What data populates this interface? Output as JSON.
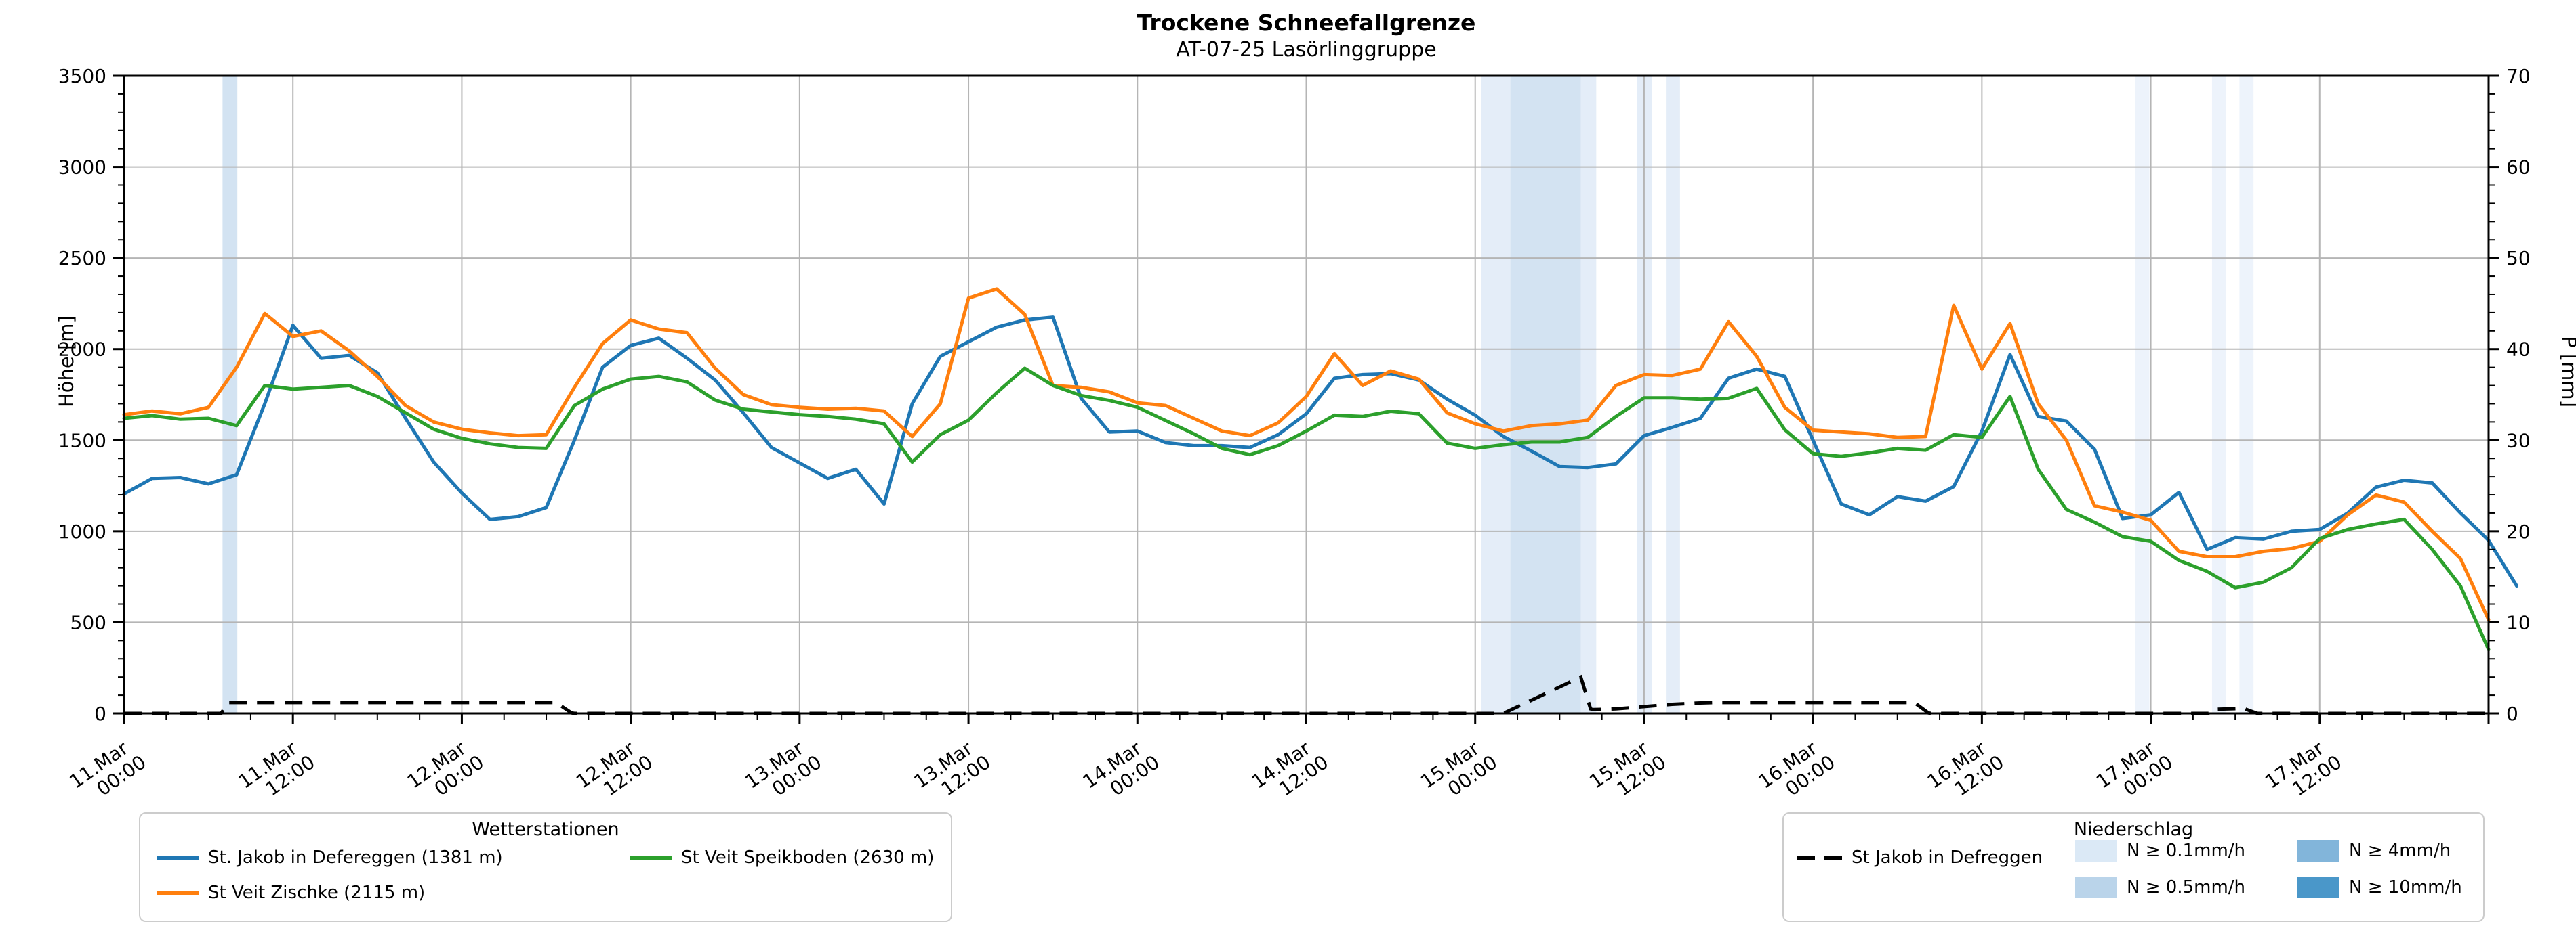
{
  "title": "Trockene Schneefallgrenze",
  "subtitle": "AT-07-25 Lasörlinggruppe",
  "axes": {
    "left_label": "Höhe [m]",
    "right_label": "P [mm]",
    "left_ticks": [
      0,
      500,
      1000,
      1500,
      2000,
      2500,
      3000,
      3500
    ],
    "right_ticks": [
      0,
      10,
      20,
      30,
      40,
      50,
      60,
      70
    ],
    "x_ticks": [
      {
        "date": "11.Mar",
        "time": "00:00"
      },
      {
        "date": "11.Mar",
        "time": "12:00"
      },
      {
        "date": "12.Mar",
        "time": "00:00"
      },
      {
        "date": "12.Mar",
        "time": "12:00"
      },
      {
        "date": "13.Mar",
        "time": "00:00"
      },
      {
        "date": "13.Mar",
        "time": "12:00"
      },
      {
        "date": "14.Mar",
        "time": "00:00"
      },
      {
        "date": "14.Mar",
        "time": "12:00"
      },
      {
        "date": "15.Mar",
        "time": "00:00"
      },
      {
        "date": "15.Mar",
        "time": "12:00"
      },
      {
        "date": "16.Mar",
        "time": "00:00"
      },
      {
        "date": "16.Mar",
        "time": "12:00"
      },
      {
        "date": "17.Mar",
        "time": "00:00"
      },
      {
        "date": "17.Mar",
        "time": "12:00"
      }
    ]
  },
  "legend_stations": {
    "title": "Wetterstationen",
    "entries": [
      {
        "label": "St. Jakob in Defereggen (1381 m)",
        "color": "#1f77b4"
      },
      {
        "label": "St Veit Zischke (2115 m)",
        "color": "#ff7f0e"
      },
      {
        "label": "St Veit Speikboden (2630 m)",
        "color": "#2ca02c"
      }
    ]
  },
  "legend_precip": {
    "title": "Niederschlag",
    "station_entry": {
      "label": "St Jakob in Defreggen",
      "color": "#000000"
    },
    "patch_entries": [
      {
        "label": "N ≥ 0.1mm/h",
        "color": "#dbe9f6"
      },
      {
        "label": "N ≥ 0.5mm/h",
        "color": "#bad4ea"
      },
      {
        "label": "N ≥ 4mm/h",
        "color": "#82b5da"
      },
      {
        "label": "N ≥ 10mm/h",
        "color": "#4a97c9"
      }
    ]
  },
  "chart_data": {
    "type": "line",
    "title": "Trockene Schneefallgrenze",
    "subtitle": "AT-07-25 Lasörlinggruppe",
    "xlabel": "",
    "ylabel_left": "Höhe [m]",
    "ylabel_right": "P [mm]",
    "ylim_left": [
      0,
      3500
    ],
    "ylim_right": [
      0,
      70
    ],
    "grid": true,
    "legend_position": "bottom",
    "x_unit": "hours since 11.Mar 00:00",
    "x_start_hours": 0,
    "x_end_hours": 168,
    "x_major_tick_hours": 12,
    "x_minor_tick_hours": 3,
    "y_left_minor_step": 100,
    "y_right_minor_step": 2,
    "x_step_hours": 2,
    "series": [
      {
        "name": "St. Jakob in Defereggen (1381 m)",
        "color": "#1f77b4",
        "axis": "left",
        "values": [
          1205,
          1290,
          1295,
          1260,
          1310,
          1700,
          2130,
          1950,
          1965,
          1870,
          1620,
          1380,
          1210,
          1065,
          1080,
          1130,
          1500,
          1900,
          2020,
          2060,
          1950,
          1830,
          1650,
          1460,
          1375,
          1290,
          1340,
          1150,
          1700,
          1960,
          2040,
          2120,
          2160,
          2175,
          1730,
          1545,
          1550,
          1487,
          1470,
          1470,
          1460,
          1530,
          1645,
          1840,
          1860,
          1865,
          1830,
          1725,
          1637,
          1520,
          1440,
          1355,
          1350,
          1370,
          1525,
          1570,
          1620,
          1840,
          1890,
          1850,
          1500,
          1150,
          1090,
          1190,
          1165,
          1245,
          1550,
          1970,
          1630,
          1605,
          1450,
          1070,
          1090,
          1213,
          900,
          965,
          957,
          1000,
          1010,
          1100,
          1242,
          1280,
          1265,
          1100,
          950,
          700
        ]
      },
      {
        "name": "St Veit Zischke (2115 m)",
        "color": "#ff7f0e",
        "axis": "left",
        "values": [
          1640,
          1660,
          1645,
          1680,
          1900,
          2195,
          2070,
          2100,
          1990,
          1850,
          1690,
          1600,
          1560,
          1540,
          1525,
          1530,
          1790,
          2030,
          2160,
          2110,
          2090,
          1895,
          1750,
          1695,
          1680,
          1670,
          1675,
          1660,
          1520,
          1700,
          2280,
          2330,
          2190,
          1800,
          1790,
          1765,
          1705,
          1690,
          1620,
          1550,
          1525,
          1595,
          1740,
          1975,
          1800,
          1880,
          1835,
          1650,
          1590,
          1550,
          1580,
          1590,
          1610,
          1800,
          1860,
          1855,
          1890,
          2150,
          1960,
          1680,
          1555,
          1545,
          1535,
          1515,
          1520,
          2240,
          1890,
          2140,
          1700,
          1500,
          1140,
          1105,
          1060,
          890,
          860,
          860,
          890,
          905,
          945,
          1090,
          1199,
          1160,
          1000,
          850,
          515
        ]
      },
      {
        "name": "St Veit Speikboden (2630 m)",
        "color": "#2ca02c",
        "axis": "left",
        "values": [
          1620,
          1635,
          1615,
          1620,
          1580,
          1800,
          1780,
          1790,
          1800,
          1740,
          1650,
          1560,
          1510,
          1480,
          1460,
          1455,
          1690,
          1780,
          1835,
          1850,
          1820,
          1720,
          1670,
          1655,
          1640,
          1630,
          1615,
          1590,
          1380,
          1530,
          1610,
          1760,
          1895,
          1800,
          1745,
          1718,
          1681,
          1608,
          1535,
          1455,
          1420,
          1470,
          1550,
          1637,
          1630,
          1659,
          1645,
          1484,
          1455,
          1475,
          1490,
          1490,
          1515,
          1630,
          1732,
          1732,
          1725,
          1730,
          1784,
          1557,
          1426,
          1411,
          1430,
          1455,
          1445,
          1530,
          1515,
          1740,
          1340,
          1120,
          1050,
          970,
          945,
          840,
          780,
          690,
          720,
          800,
          960,
          1010,
          1040,
          1065,
          900,
          700,
          350
        ]
      }
    ],
    "precip_line": {
      "name": "St Jakob in Defreggen",
      "color": "#000000",
      "axis": "right",
      "unit": "mm",
      "points": [
        [
          0,
          0
        ],
        [
          6.9,
          0
        ],
        [
          7.4,
          1.2
        ],
        [
          30.7,
          1.2
        ],
        [
          31.8,
          0.05
        ],
        [
          32,
          0
        ],
        [
          97.9,
          0
        ],
        [
          98.2,
          0.15
        ],
        [
          103.5,
          4.0
        ],
        [
          104.2,
          0.5
        ],
        [
          104.4,
          0.42
        ],
        [
          106,
          0.5
        ],
        [
          108,
          0.75
        ],
        [
          110,
          1.0
        ],
        [
          112,
          1.15
        ],
        [
          113,
          1.2
        ],
        [
          127.2,
          1.2
        ],
        [
          128.2,
          0.05
        ],
        [
          128.4,
          0
        ],
        [
          148.1,
          0
        ],
        [
          148.6,
          0.45
        ],
        [
          150.6,
          0.55
        ],
        [
          151.4,
          0.1
        ],
        [
          151.6,
          0
        ],
        [
          168,
          0
        ]
      ]
    },
    "precip_bands": [
      {
        "from": 7.0,
        "to": 8.05,
        "color": "#d3e3f2"
      },
      {
        "from": 96.4,
        "to": 98.5,
        "color": "#e4edf8"
      },
      {
        "from": 98.5,
        "to": 103.5,
        "color": "#d3e3f2"
      },
      {
        "from": 103.5,
        "to": 104.6,
        "color": "#e4edf8"
      },
      {
        "from": 107.5,
        "to": 108.55,
        "color": "#e4edf8"
      },
      {
        "from": 109.55,
        "to": 110.55,
        "color": "#e4edf8"
      },
      {
        "from": 142.9,
        "to": 143.9,
        "color": "#edf3fb"
      },
      {
        "from": 148.35,
        "to": 149.35,
        "color": "#edf3fb"
      },
      {
        "from": 150.3,
        "to": 151.3,
        "color": "#edf3fb"
      }
    ]
  }
}
